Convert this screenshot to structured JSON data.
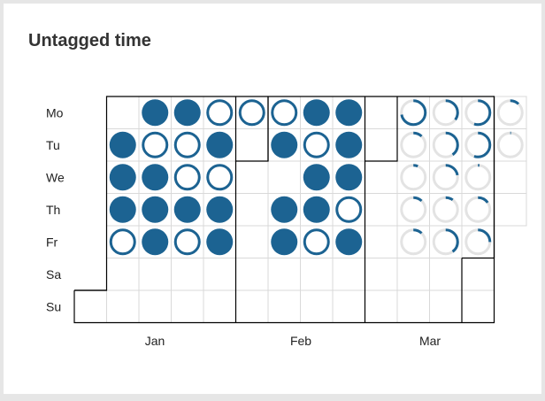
{
  "widget": {
    "title": "Untagged time"
  },
  "colors": {
    "fill": "#1c6392",
    "ring_track": "#e3e3e3",
    "grid_line": "#d9d9d9",
    "month_border": "#000000"
  },
  "calendar": {
    "day_labels": [
      "Mo",
      "Tu",
      "We",
      "Th",
      "Fr",
      "Sa",
      "Su"
    ],
    "months": [
      {
        "label": "Jan"
      },
      {
        "label": "Feb"
      },
      {
        "label": "Mar"
      }
    ],
    "legend_note": "state per day: full, empty-ring, or progress fraction 0..1 of untagged time",
    "weeks": [
      {
        "week": 1,
        "days": [
          null,
          null,
          null,
          null,
          null,
          null,
          "blank"
        ]
      },
      {
        "week": 2,
        "days": [
          "blank",
          "full",
          "full",
          "full",
          "ring",
          "blank",
          "blank"
        ]
      },
      {
        "week": 3,
        "days": [
          "full",
          "ring",
          "full",
          "full",
          "full",
          "blank",
          "blank"
        ]
      },
      {
        "week": 4,
        "days": [
          "full",
          "ring",
          "ring",
          "full",
          "ring",
          "blank",
          "blank"
        ]
      },
      {
        "week": 5,
        "days": [
          "ring",
          "full",
          "ring",
          "full",
          "full",
          "blank",
          "blank"
        ]
      },
      {
        "week": 6,
        "days": [
          "ring",
          "blank",
          "blank",
          "blank",
          "blank",
          "blank",
          "blank"
        ]
      },
      {
        "week": 7,
        "days": [
          "ring",
          "full",
          "blank",
          "full",
          "full",
          "blank",
          "blank"
        ]
      },
      {
        "week": 8,
        "days": [
          "full",
          "ring",
          "full",
          "full",
          "ring",
          "blank",
          "blank"
        ]
      },
      {
        "week": 9,
        "days": [
          "full",
          "full",
          "full",
          "ring",
          "full",
          "blank",
          "blank"
        ]
      },
      {
        "week": 10,
        "days": [
          "blank",
          "blank",
          "blank",
          "blank",
          "blank",
          "blank",
          "blank"
        ]
      },
      {
        "week": 11,
        "days": [
          0.72,
          0.12,
          0.06,
          0.12,
          0.12,
          "blank",
          "blank"
        ]
      },
      {
        "week": 12,
        "days": [
          0.35,
          0.4,
          0.22,
          0.1,
          0.4,
          "blank",
          "blank"
        ]
      },
      {
        "week": 13,
        "days": [
          0.55,
          0.55,
          0.02,
          0.15,
          0.25,
          "blank",
          "blank"
        ]
      },
      {
        "week": 14,
        "days": [
          0.12,
          0.01,
          "blank",
          "blank",
          null,
          null,
          null
        ]
      }
    ]
  }
}
